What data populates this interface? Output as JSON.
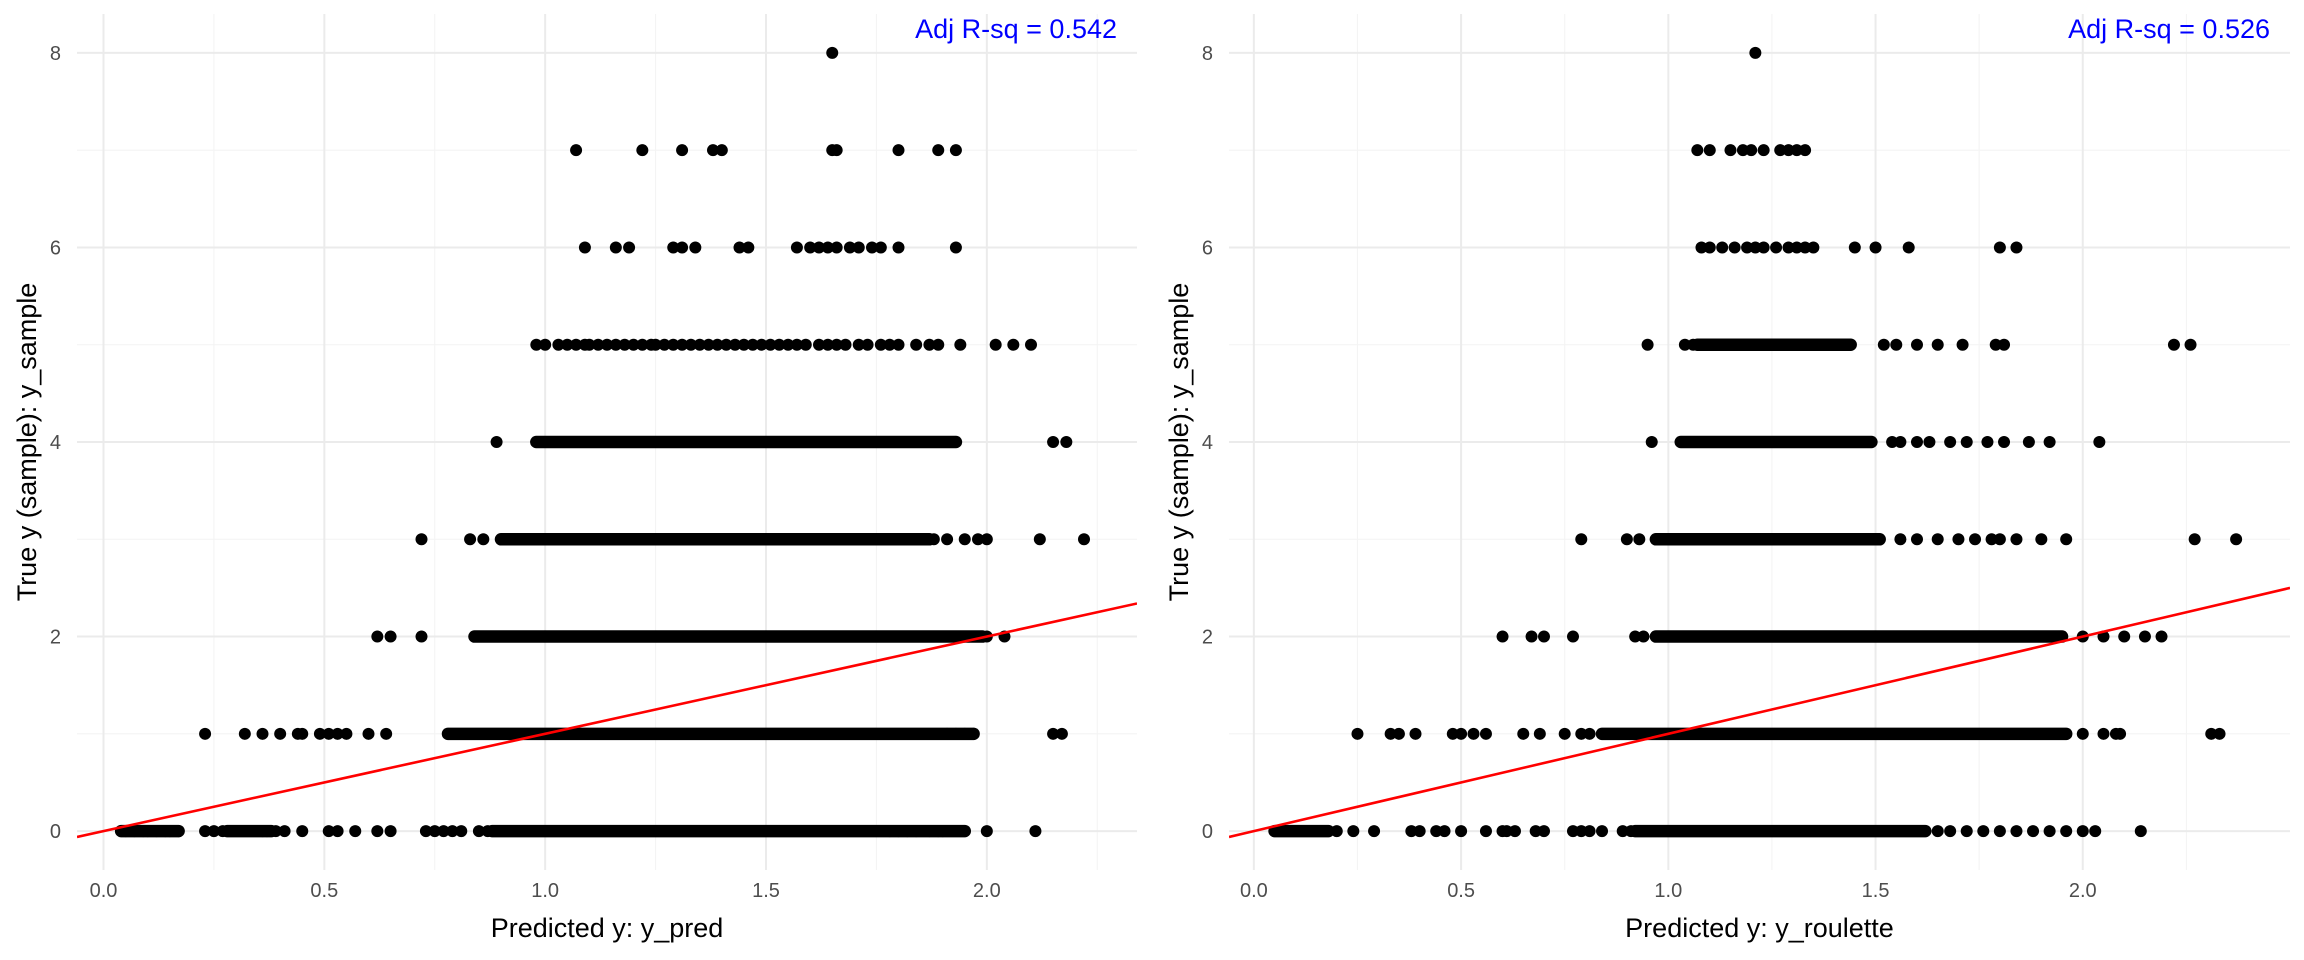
{
  "figure": {
    "panels_count": 2,
    "background": "#ffffff",
    "grid_major_color": "#ebebeb",
    "grid_minor_color": "#f4f4f4",
    "point_color": "#000000",
    "fit_line_color": "#ff0000",
    "annotation_color": "#0000ff"
  },
  "chart_data": [
    {
      "type": "scatter",
      "title": "",
      "xlabel": "Predicted y: y_pred",
      "ylabel": "True y (sample): y_sample",
      "xlim": [
        -0.06,
        2.34
      ],
      "ylim": [
        -0.4,
        8.4
      ],
      "x_ticks": [
        0.0,
        0.5,
        1.0,
        1.5,
        2.0
      ],
      "x_tick_labels": [
        "0.0",
        "0.5",
        "1.0",
        "1.5",
        "2.0"
      ],
      "y_ticks": [
        0,
        2,
        4,
        6,
        8
      ],
      "y_tick_labels": [
        "0",
        "2",
        "4",
        "6",
        "8"
      ],
      "grid": true,
      "annotation": "Adj R-sq = 0.542",
      "fit_line": {
        "intercept": 0.0,
        "slope": 1.0
      },
      "rows": [
        {
          "y": 0,
          "ranges": [
            [
              0.04,
              0.17
            ],
            [
              0.28,
              0.38
            ],
            [
              0.88,
              1.95
            ]
          ],
          "points": [
            0.05,
            0.07,
            0.09,
            0.1,
            0.12,
            0.14,
            0.15,
            0.17,
            0.23,
            0.25,
            0.27,
            0.36,
            0.37,
            0.39,
            0.41,
            0.45,
            0.51,
            0.53,
            0.57,
            0.62,
            0.65,
            0.73,
            0.75,
            0.77,
            0.79,
            0.81,
            0.85,
            0.87,
            1.78,
            1.8,
            1.82,
            1.84,
            1.87,
            1.89,
            1.9,
            2.0,
            2.11
          ]
        },
        {
          "y": 1,
          "ranges": [
            [
              0.78,
              1.97
            ]
          ],
          "points": [
            0.23,
            0.32,
            0.36,
            0.4,
            0.44,
            0.45,
            0.49,
            0.51,
            0.53,
            0.55,
            0.6,
            0.64,
            1.91,
            1.93,
            1.95,
            1.97,
            2.15,
            2.17
          ]
        },
        {
          "y": 2,
          "ranges": [
            [
              0.84,
              1.99
            ]
          ],
          "points": [
            0.62,
            0.65,
            0.72,
            0.84,
            0.86,
            2.0,
            2.04
          ]
        },
        {
          "y": 3,
          "ranges": [
            [
              0.9,
              1.87
            ]
          ],
          "points": [
            0.72,
            0.83,
            0.86,
            1.88,
            1.91,
            1.95,
            1.98,
            2.0,
            2.12,
            2.22
          ]
        },
        {
          "y": 4,
          "ranges": [
            [
              0.98,
              1.93
            ]
          ],
          "points": [
            0.89,
            2.15,
            2.18
          ]
        },
        {
          "y": 5,
          "ranges": [],
          "points": [
            0.98,
            1.0,
            1.03,
            1.05,
            1.07,
            1.09,
            1.1,
            1.12,
            1.14,
            1.16,
            1.18,
            1.2,
            1.22,
            1.24,
            1.25,
            1.27,
            1.29,
            1.31,
            1.33,
            1.35,
            1.37,
            1.39,
            1.41,
            1.43,
            1.45,
            1.47,
            1.49,
            1.51,
            1.53,
            1.55,
            1.57,
            1.59,
            1.62,
            1.64,
            1.66,
            1.68,
            1.71,
            1.73,
            1.76,
            1.78,
            1.8,
            1.84,
            1.87,
            1.89,
            1.94,
            2.02,
            2.06,
            2.1
          ]
        },
        {
          "y": 6,
          "ranges": [],
          "points": [
            1.09,
            1.16,
            1.19,
            1.29,
            1.31,
            1.34,
            1.44,
            1.46,
            1.57,
            1.6,
            1.62,
            1.64,
            1.66,
            1.69,
            1.71,
            1.74,
            1.76,
            1.8,
            1.93
          ]
        },
        {
          "y": 7,
          "ranges": [],
          "points": [
            1.07,
            1.22,
            1.31,
            1.38,
            1.4,
            1.65,
            1.66,
            1.8,
            1.89,
            1.93
          ]
        },
        {
          "y": 8,
          "ranges": [],
          "points": [
            1.65
          ]
        }
      ]
    },
    {
      "type": "scatter",
      "title": "",
      "xlabel": "Predicted y: y_roulette",
      "ylabel": "True y (sample): y_sample",
      "xlim": [
        -0.06,
        2.5
      ],
      "ylim": [
        -0.4,
        8.4
      ],
      "x_ticks": [
        0.0,
        0.5,
        1.0,
        1.5,
        2.0
      ],
      "x_tick_labels": [
        "0.0",
        "0.5",
        "1.0",
        "1.5",
        "2.0"
      ],
      "y_ticks": [
        0,
        2,
        4,
        6,
        8
      ],
      "y_tick_labels": [
        "0",
        "2",
        "4",
        "6",
        "8"
      ],
      "grid": true,
      "annotation": "Adj R-sq = 0.526",
      "fit_line": {
        "intercept": 0.0,
        "slope": 1.0
      },
      "rows": [
        {
          "y": 0,
          "ranges": [
            [
              0.05,
              0.18
            ],
            [
              0.92,
              1.62
            ]
          ],
          "points": [
            0.2,
            0.24,
            0.29,
            0.38,
            0.4,
            0.44,
            0.46,
            0.5,
            0.56,
            0.6,
            0.61,
            0.63,
            0.68,
            0.7,
            0.77,
            0.79,
            0.81,
            0.84,
            0.89,
            0.91,
            1.65,
            1.68,
            1.72,
            1.76,
            1.8,
            1.84,
            1.88,
            1.92,
            1.96,
            2.0,
            2.03,
            2.14
          ]
        },
        {
          "y": 1,
          "ranges": [
            [
              0.84,
              1.96
            ]
          ],
          "points": [
            0.25,
            0.33,
            0.35,
            0.39,
            0.48,
            0.5,
            0.53,
            0.56,
            0.65,
            0.69,
            0.75,
            0.79,
            0.81,
            2.0,
            2.05,
            2.08,
            2.09,
            2.31,
            2.33
          ]
        },
        {
          "y": 2,
          "ranges": [
            [
              0.97,
              1.95
            ]
          ],
          "points": [
            0.6,
            0.67,
            0.7,
            0.77,
            0.92,
            0.94,
            2.0,
            2.05,
            2.1,
            2.15,
            2.19
          ]
        },
        {
          "y": 3,
          "ranges": [
            [
              0.97,
              1.51
            ]
          ],
          "points": [
            0.79,
            0.9,
            0.93,
            1.56,
            1.6,
            1.65,
            1.7,
            1.74,
            1.78,
            1.8,
            1.84,
            1.9,
            1.96,
            2.27,
            2.37
          ]
        },
        {
          "y": 4,
          "ranges": [
            [
              1.03,
              1.49
            ]
          ],
          "points": [
            0.96,
            1.54,
            1.56,
            1.6,
            1.63,
            1.68,
            1.72,
            1.77,
            1.81,
            1.87,
            1.92,
            2.04
          ]
        },
        {
          "y": 5,
          "ranges": [
            [
              1.07,
              1.44
            ]
          ],
          "points": [
            0.95,
            1.04,
            1.06,
            1.52,
            1.55,
            1.6,
            1.65,
            1.71,
            1.79,
            1.81,
            2.22,
            2.26
          ]
        },
        {
          "y": 6,
          "ranges": [],
          "points": [
            1.08,
            1.1,
            1.13,
            1.16,
            1.19,
            1.21,
            1.23,
            1.26,
            1.29,
            1.31,
            1.33,
            1.35,
            1.45,
            1.5,
            1.58,
            1.8,
            1.84
          ]
        },
        {
          "y": 7,
          "ranges": [],
          "points": [
            1.07,
            1.1,
            1.15,
            1.18,
            1.2,
            1.23,
            1.27,
            1.29,
            1.31,
            1.33
          ]
        },
        {
          "y": 8,
          "ranges": [],
          "points": [
            1.21
          ]
        }
      ]
    }
  ]
}
